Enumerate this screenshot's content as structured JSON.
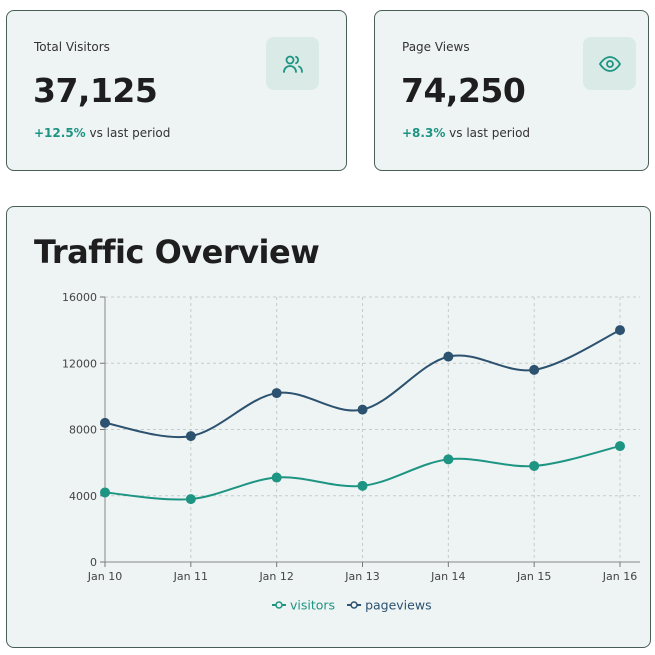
{
  "stats": [
    {
      "label": "Total Visitors",
      "value": "37,125",
      "change": "+12.5%",
      "change_suffix": "vs last period",
      "icon": "users-icon"
    },
    {
      "label": "Page Views",
      "value": "74,250",
      "change": "+8.3%",
      "change_suffix": "vs last period",
      "icon": "eye-icon"
    }
  ],
  "colors": {
    "accent": "#1e9483",
    "pageviews": "#2c5270",
    "card_bg": "#eef4f3"
  },
  "chart_title": "Traffic Overview",
  "chart_data": {
    "type": "line",
    "categories": [
      "Jan 10",
      "Jan 11",
      "Jan 12",
      "Jan 13",
      "Jan 14",
      "Jan 15",
      "Jan 16"
    ],
    "series": [
      {
        "name": "visitors",
        "color": "#1e9483",
        "values": [
          4200,
          3800,
          5100,
          4600,
          6200,
          5800,
          7000
        ]
      },
      {
        "name": "pageviews",
        "color": "#2c5270",
        "values": [
          8400,
          7600,
          10200,
          9200,
          12400,
          11600,
          14000
        ]
      }
    ],
    "ylim": [
      0,
      16000
    ],
    "yticks": [
      "0",
      "4000",
      "8000",
      "12000",
      "16000"
    ],
    "grid": true,
    "legend": "bottom-center",
    "curve": "smooth"
  }
}
